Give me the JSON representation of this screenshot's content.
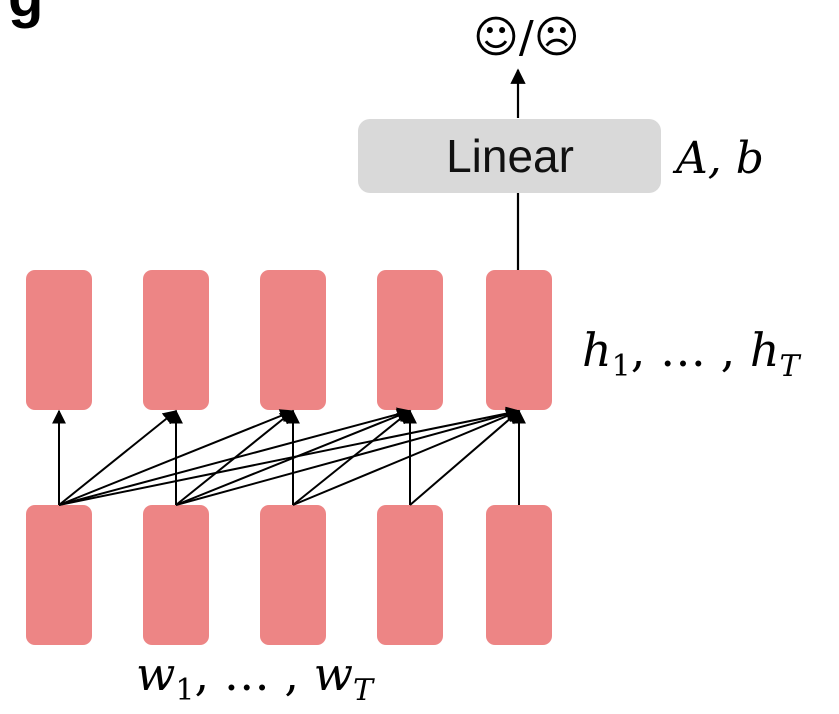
{
  "title_fragment": "g",
  "output_label": "☺/☹",
  "linear_box": {
    "label": "Linear",
    "fill": "#d9d9d9"
  },
  "params_label": {
    "main": "A, b"
  },
  "hidden_label": {
    "h": "h",
    "sub1": "1",
    "dots": ", … , ",
    "subT": "T"
  },
  "input_label": {
    "w": "w",
    "sub1": "1",
    "dots": ", … , ",
    "subT": "T"
  },
  "colors": {
    "cell": "#ed8585",
    "arrow": "#000000"
  }
}
